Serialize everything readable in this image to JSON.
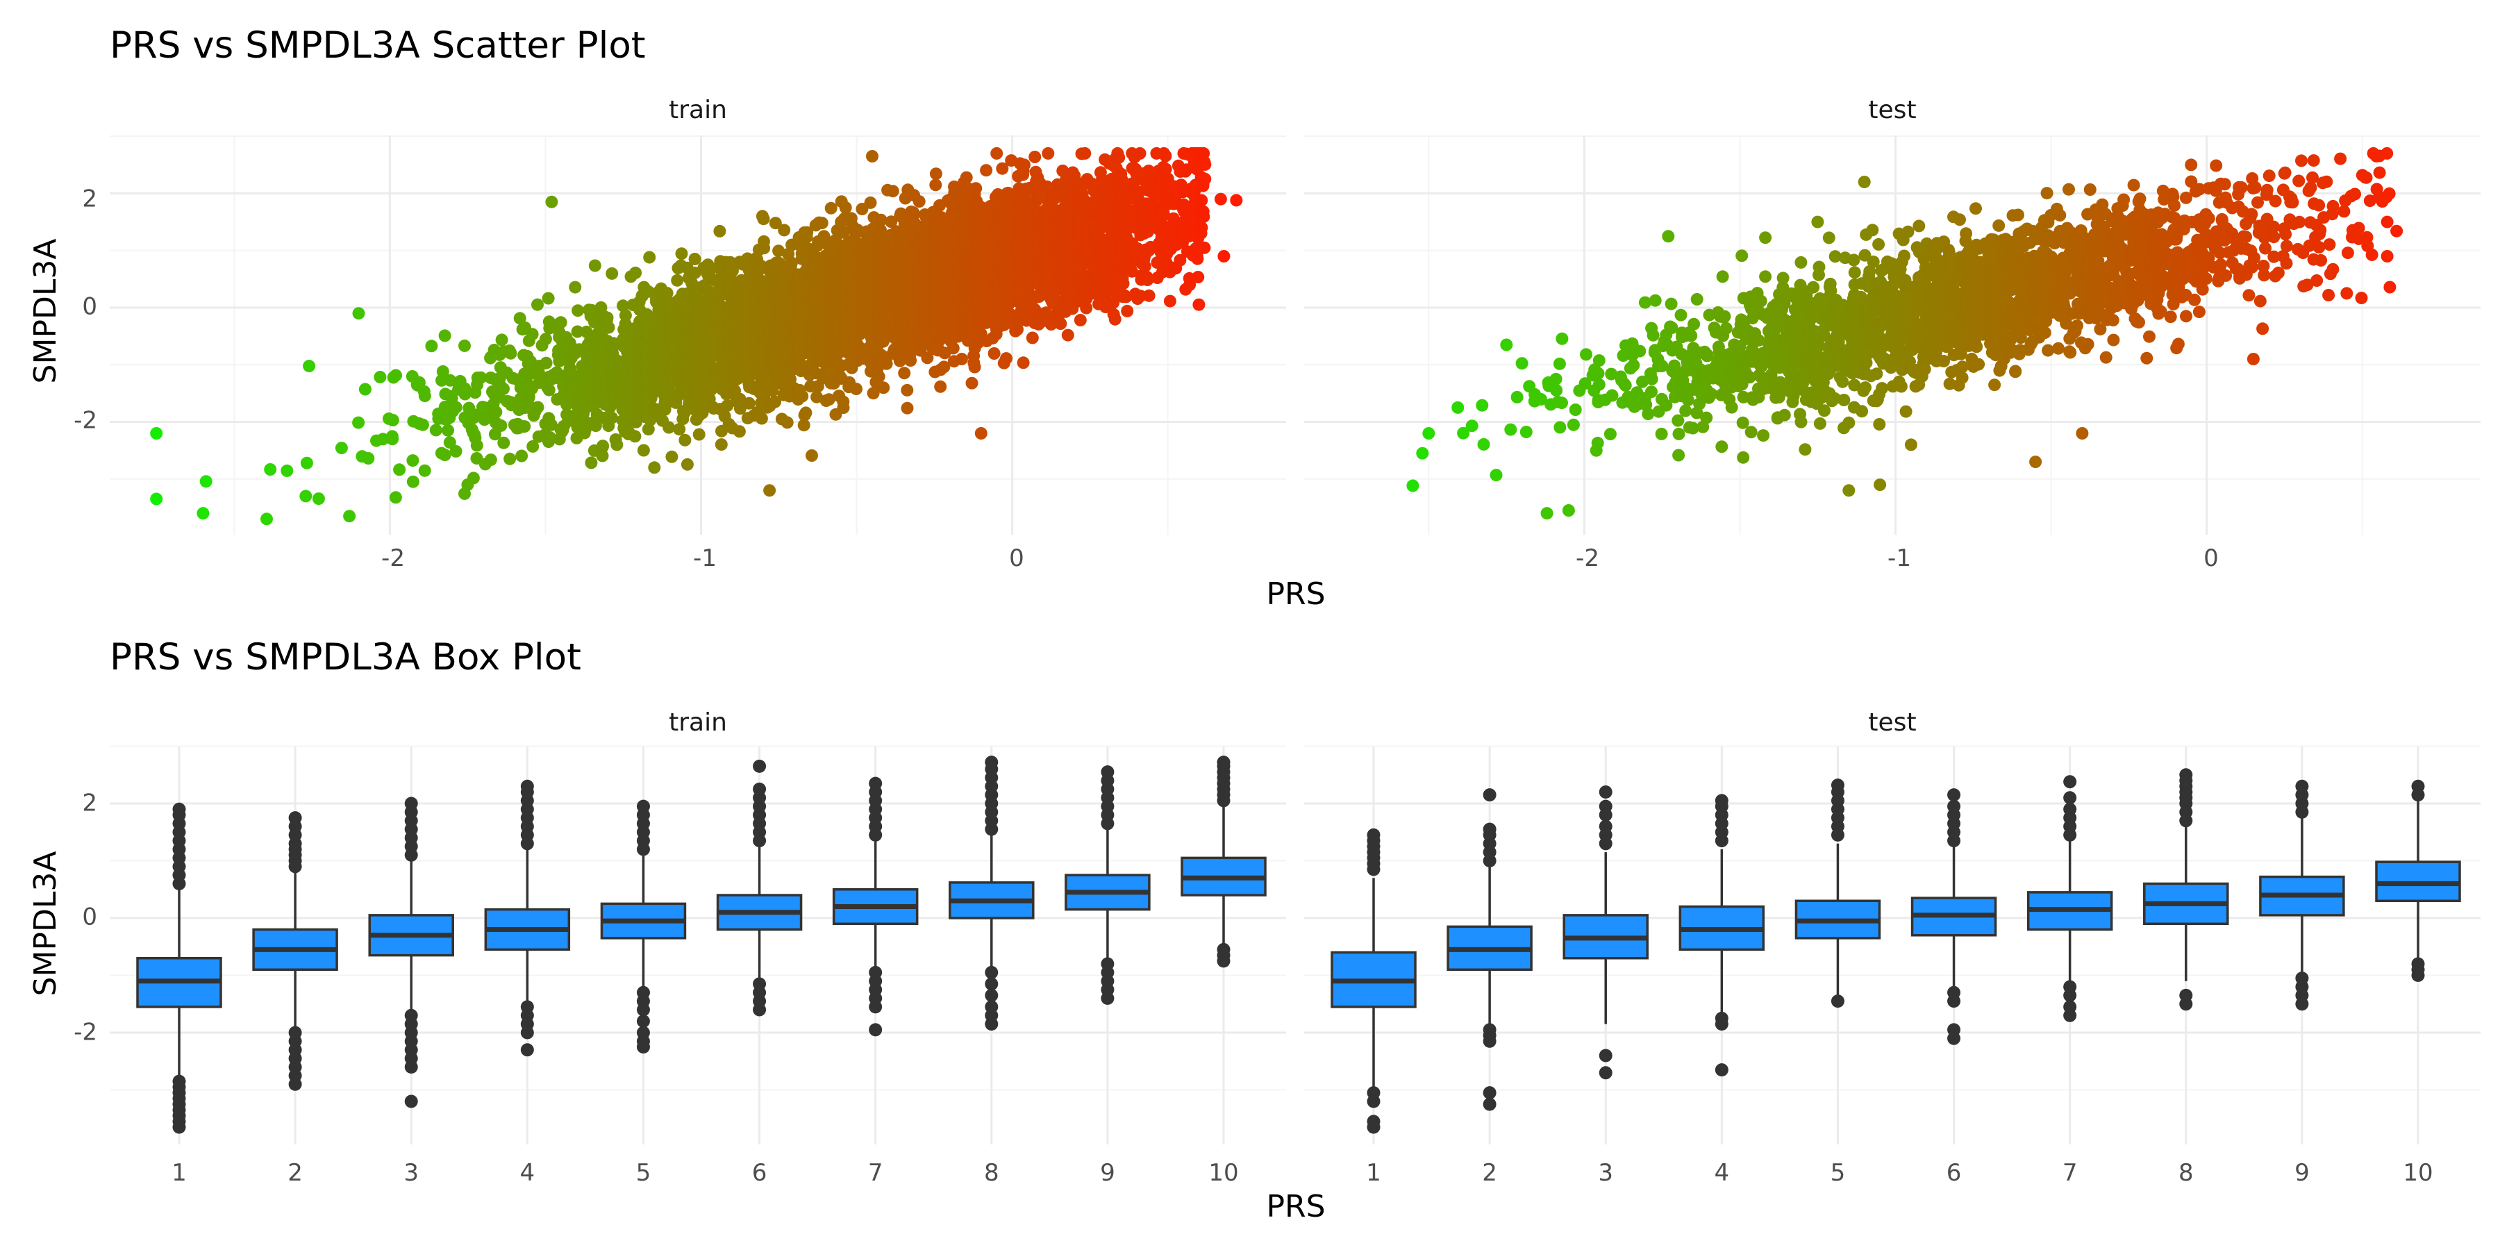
{
  "chart_data": [
    {
      "type": "scatter",
      "title": "PRS vs SMPDL3A Scatter Plot",
      "xlabel": "PRS",
      "ylabel": "SMPDL3A",
      "facets": [
        "train",
        "test"
      ],
      "x_ticks": [
        "-2",
        "-1",
        "0"
      ],
      "y_ticks": [
        "2",
        "0",
        "-2"
      ],
      "xlim": [
        -2.9,
        0.88
      ],
      "ylim": [
        -4.0,
        3.0
      ],
      "color_gradient": [
        "#00ff00",
        "#ff1a00"
      ],
      "grid": true,
      "series": [
        {
          "facet": "train",
          "trend": {
            "slope": 1.55,
            "intercept": 0.1,
            "x_center": -0.45,
            "x_sd": 0.55,
            "noise_sd": 0.62,
            "n": 5200
          },
          "outliers": [
            [
              -2.75,
              -2.2
            ],
            [
              -2.75,
              -3.35
            ],
            [
              -2.6,
              -3.6
            ],
            [
              0.67,
              1.9
            ],
            [
              0.72,
              1.88
            ],
            [
              0.68,
              0.9
            ],
            [
              0.57,
              0.4
            ],
            [
              -0.78,
              -3.2
            ],
            [
              -1.48,
              1.85
            ],
            [
              -0.45,
              2.65
            ],
            [
              -0.05,
              2.7
            ],
            [
              0.33,
              2.6
            ],
            [
              -2.13,
              -3.65
            ],
            [
              -1.75,
              -3.1
            ],
            [
              -2.27,
              -3.3
            ],
            [
              -2.1,
              -0.1
            ],
            [
              -1.15,
              -2.8
            ],
            [
              -0.1,
              -2.2
            ]
          ]
        },
        {
          "facet": "test",
          "trend": {
            "slope": 1.35,
            "intercept": 0.05,
            "x_center": -0.75,
            "x_sd": 0.55,
            "noise_sd": 0.58,
            "n": 2200
          },
          "outliers": [
            [
              -2.5,
              -2.2
            ],
            [
              -2.52,
              -2.55
            ],
            [
              -2.05,
              -3.55
            ],
            [
              -2.12,
              -3.6
            ],
            [
              0.58,
              1.5
            ],
            [
              0.58,
              0.9
            ],
            [
              0.45,
              0.25
            ],
            [
              0.15,
              -0.9
            ],
            [
              -1.1,
              2.2
            ],
            [
              -0.05,
              2.5
            ],
            [
              0.25,
              2.35
            ],
            [
              -1.05,
              -3.1
            ],
            [
              -1.15,
              -3.2
            ],
            [
              -1.73,
              1.25
            ],
            [
              -1.25,
              1.5
            ],
            [
              -0.95,
              -2.4
            ],
            [
              -2.25,
              -0.65
            ],
            [
              -0.55,
              -2.7
            ],
            [
              -0.4,
              -2.2
            ]
          ]
        }
      ]
    },
    {
      "type": "box",
      "title": "PRS vs SMPDL3A Box Plot",
      "xlabel": "PRS",
      "ylabel": "SMPDL3A",
      "facets": [
        "train",
        "test"
      ],
      "categories": [
        "1",
        "2",
        "3",
        "4",
        "5",
        "6",
        "7",
        "8",
        "9",
        "10"
      ],
      "y_ticks": [
        "2",
        "0",
        "-2"
      ],
      "ylim": [
        -4.0,
        3.0
      ],
      "box_color": "#1e90ff",
      "box_edge_color": "#333333",
      "grid": true,
      "series": [
        {
          "facet": "train",
          "boxes": [
            {
              "q1": -1.55,
              "median": -1.1,
              "q3": -0.7,
              "whisker_low": -2.8,
              "whisker_high": 0.5,
              "outliers_low": [
                -2.85,
                -2.95,
                -3.05,
                -3.15,
                -3.25,
                -3.35,
                -3.45,
                -3.55,
                -3.65
              ],
              "outliers_high": [
                0.6,
                0.75,
                0.9,
                1.05,
                1.2,
                1.35,
                1.5,
                1.65,
                1.8,
                1.9
              ]
            },
            {
              "q1": -0.9,
              "median": -0.55,
              "q3": -0.2,
              "whisker_low": -1.9,
              "whisker_high": 0.85,
              "outliers_low": [
                -2.0,
                -2.15,
                -2.3,
                -2.45,
                -2.6,
                -2.75,
                -2.9
              ],
              "outliers_high": [
                0.9,
                1.0,
                1.1,
                1.2,
                1.3,
                1.45,
                1.6,
                1.75
              ]
            },
            {
              "q1": -0.65,
              "median": -0.3,
              "q3": 0.05,
              "whisker_low": -1.6,
              "whisker_high": 1.05,
              "outliers_low": [
                -1.7,
                -1.85,
                -2.0,
                -2.15,
                -2.3,
                -2.45,
                -2.6,
                -3.2
              ],
              "outliers_high": [
                1.1,
                1.25,
                1.4,
                1.55,
                1.7,
                1.85,
                2.0
              ]
            },
            {
              "q1": -0.55,
              "median": -0.2,
              "q3": 0.15,
              "whisker_low": -1.5,
              "whisker_high": 1.25,
              "outliers_low": [
                -1.55,
                -1.7,
                -1.85,
                -2.0,
                -2.3
              ],
              "outliers_high": [
                1.3,
                1.45,
                1.6,
                1.75,
                1.9,
                2.05,
                2.2,
                2.3
              ]
            },
            {
              "q1": -0.35,
              "median": -0.05,
              "q3": 0.25,
              "whisker_low": -1.25,
              "whisker_high": 1.15,
              "outliers_low": [
                -1.3,
                -1.45,
                -1.6,
                -1.8,
                -2.0,
                -2.15,
                -2.25
              ],
              "outliers_high": [
                1.2,
                1.35,
                1.5,
                1.65,
                1.8,
                1.95
              ]
            },
            {
              "q1": -0.2,
              "median": 0.1,
              "q3": 0.4,
              "whisker_low": -1.1,
              "whisker_high": 1.3,
              "outliers_low": [
                -1.15,
                -1.3,
                -1.45,
                -1.6
              ],
              "outliers_high": [
                1.35,
                1.5,
                1.65,
                1.8,
                1.95,
                2.1,
                2.25,
                2.65
              ]
            },
            {
              "q1": -0.1,
              "median": 0.2,
              "q3": 0.5,
              "whisker_low": -0.85,
              "whisker_high": 1.4,
              "outliers_low": [
                -0.95,
                -1.1,
                -1.25,
                -1.4,
                -1.55,
                -1.95
              ],
              "outliers_high": [
                1.45,
                1.6,
                1.75,
                1.9,
                2.05,
                2.2,
                2.35
              ]
            },
            {
              "q1": 0.0,
              "median": 0.3,
              "q3": 0.62,
              "whisker_low": -0.9,
              "whisker_high": 1.5,
              "outliers_low": [
                -0.95,
                -1.15,
                -1.35,
                -1.55,
                -1.7,
                -1.85
              ],
              "outliers_high": [
                1.55,
                1.7,
                1.85,
                2.0,
                2.15,
                2.3,
                2.45,
                2.6,
                2.72
              ]
            },
            {
              "q1": 0.15,
              "median": 0.45,
              "q3": 0.75,
              "whisker_low": -0.75,
              "whisker_high": 1.6,
              "outliers_low": [
                -0.8,
                -0.95,
                -1.1,
                -1.25,
                -1.4
              ],
              "outliers_high": [
                1.65,
                1.8,
                1.95,
                2.1,
                2.25,
                2.4,
                2.55
              ]
            },
            {
              "q1": 0.4,
              "median": 0.7,
              "q3": 1.05,
              "whisker_low": -0.5,
              "whisker_high": 2.0,
              "outliers_low": [
                -0.55,
                -0.65,
                -0.75
              ],
              "outliers_high": [
                2.05,
                2.15,
                2.25,
                2.35,
                2.45,
                2.55,
                2.65,
                2.72
              ]
            }
          ]
        },
        {
          "facet": "test",
          "boxes": [
            {
              "q1": -1.55,
              "median": -1.1,
              "q3": -0.6,
              "whisker_low": -2.95,
              "whisker_high": 0.7,
              "outliers_low": [
                -3.05,
                -3.2,
                -3.55,
                -3.65
              ],
              "outliers_high": [
                0.85,
                0.95,
                1.05,
                1.15,
                1.25,
                1.35,
                1.45
              ]
            },
            {
              "q1": -0.9,
              "median": -0.55,
              "q3": -0.15,
              "whisker_low": -1.85,
              "whisker_high": 0.9,
              "outliers_low": [
                -1.95,
                -2.05,
                -2.15,
                -3.05,
                -3.25
              ],
              "outliers_high": [
                1.0,
                1.15,
                1.3,
                1.45,
                1.55,
                2.15
              ]
            },
            {
              "q1": -0.7,
              "median": -0.35,
              "q3": 0.05,
              "whisker_low": -1.85,
              "whisker_high": 1.15,
              "outliers_low": [
                -2.4,
                -2.7
              ],
              "outliers_high": [
                1.3,
                1.45,
                1.6,
                1.8,
                1.95,
                2.2
              ]
            },
            {
              "q1": -0.55,
              "median": -0.2,
              "q3": 0.2,
              "whisker_low": -1.7,
              "whisker_high": 1.2,
              "outliers_low": [
                -1.75,
                -1.85,
                -2.65
              ],
              "outliers_high": [
                1.35,
                1.5,
                1.65,
                1.8,
                1.95,
                2.05
              ]
            },
            {
              "q1": -0.35,
              "median": -0.05,
              "q3": 0.3,
              "whisker_low": -1.4,
              "whisker_high": 1.3,
              "outliers_low": [
                -1.45
              ],
              "outliers_high": [
                1.45,
                1.6,
                1.75,
                1.9,
                2.05,
                2.2,
                2.32
              ]
            },
            {
              "q1": -0.3,
              "median": 0.05,
              "q3": 0.35,
              "whisker_low": -1.25,
              "whisker_high": 1.25,
              "outliers_low": [
                -1.3,
                -1.45,
                -1.95,
                -2.1
              ],
              "outliers_high": [
                1.35,
                1.5,
                1.65,
                1.8,
                1.95,
                2.15
              ]
            },
            {
              "q1": -0.2,
              "median": 0.15,
              "q3": 0.45,
              "whisker_low": -1.1,
              "whisker_high": 1.35,
              "outliers_low": [
                -1.2,
                -1.35,
                -1.55,
                -1.7
              ],
              "outliers_high": [
                1.45,
                1.6,
                1.75,
                1.9,
                2.1,
                2.38
              ]
            },
            {
              "q1": -0.1,
              "median": 0.25,
              "q3": 0.6,
              "whisker_low": -1.1,
              "whisker_high": 1.6,
              "outliers_low": [
                -1.35,
                -1.5
              ],
              "outliers_high": [
                1.7,
                1.85,
                2.0,
                2.1,
                2.2,
                2.3,
                2.4,
                2.5
              ]
            },
            {
              "q1": 0.05,
              "median": 0.4,
              "q3": 0.72,
              "whisker_low": -0.95,
              "whisker_high": 1.75,
              "outliers_low": [
                -1.05,
                -1.2,
                -1.35,
                -1.5
              ],
              "outliers_high": [
                1.85,
                2.0,
                2.15,
                2.3
              ]
            },
            {
              "q1": 0.3,
              "median": 0.6,
              "q3": 0.98,
              "whisker_low": -0.7,
              "whisker_high": 2.05,
              "outliers_low": [
                -0.8,
                -0.9,
                -1.0
              ],
              "outliers_high": [
                2.15,
                2.3
              ]
            }
          ]
        }
      ]
    }
  ]
}
